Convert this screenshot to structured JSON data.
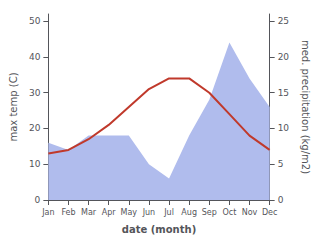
{
  "chart_data": {
    "type": "line",
    "categories": [
      "Jan",
      "Feb",
      "Mar",
      "Apr",
      "May",
      "Jun",
      "Jul",
      "Aug",
      "Sep",
      "Oct",
      "Nov",
      "Dec"
    ],
    "xlabel": "date (month)",
    "ylabel": "max temp (C)",
    "y2label": "med. precipitation (kg/m2)",
    "series": [
      {
        "type": "area",
        "color": "#b0bced",
        "axis": "y2",
        "values": [
          8,
          7,
          9,
          9,
          9,
          5,
          3,
          9,
          14,
          22,
          17,
          13
        ]
      },
      {
        "type": "line",
        "color": "#c0392b",
        "values": [
          13,
          14,
          17,
          21,
          26,
          31,
          34,
          34,
          30,
          24,
          18,
          14
        ]
      }
    ],
    "ylim": [
      0,
      52
    ],
    "yticks": [
      0,
      10,
      20,
      30,
      40,
      50
    ],
    "y2lim": [
      0,
      26
    ],
    "y2ticks": [
      0,
      5,
      10,
      15,
      20,
      25
    ],
    "grid": false
  }
}
